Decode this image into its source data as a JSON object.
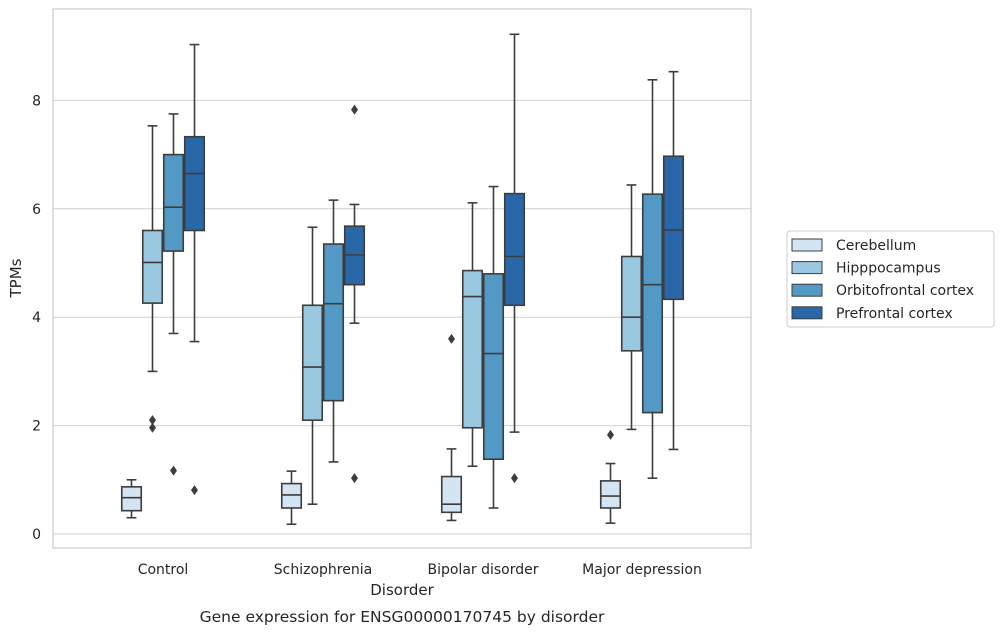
{
  "chart_data": {
    "type": "box",
    "caption": "Gene expression for ENSG00000170745 by disorder",
    "xlabel": "Disorder",
    "ylabel": "TPMs",
    "ylim": [
      -0.25,
      9.6
    ],
    "yticks": [
      0,
      2,
      4,
      6,
      8
    ],
    "grid": "horizontal",
    "legend_position": "right",
    "categories": [
      "Control",
      "Schizophrenia",
      "Bipolar disorder",
      "Major depression"
    ],
    "series": [
      {
        "name": "Cerebellum",
        "color": "#d3e4f3",
        "boxes": [
          {
            "whisker_low": 0.3,
            "q1": 0.43,
            "median": 0.67,
            "q3": 0.87,
            "whisker_high": 1.0,
            "outliers": []
          },
          {
            "whisker_low": 0.18,
            "q1": 0.48,
            "median": 0.72,
            "q3": 0.93,
            "whisker_high": 1.16,
            "outliers": []
          },
          {
            "whisker_low": 0.25,
            "q1": 0.4,
            "median": 0.55,
            "q3": 1.06,
            "whisker_high": 1.57,
            "outliers": [
              3.6
            ]
          },
          {
            "whisker_low": 0.2,
            "q1": 0.48,
            "median": 0.7,
            "q3": 0.98,
            "whisker_high": 1.3,
            "outliers": [
              1.83
            ]
          }
        ]
      },
      {
        "name": "Hipppocampus",
        "color": "#9ac8e0",
        "boxes": [
          {
            "whisker_low": 3.0,
            "q1": 4.26,
            "median": 5.01,
            "q3": 5.6,
            "whisker_high": 7.53,
            "outliers": [
              2.1,
              1.96
            ]
          },
          {
            "whisker_low": 0.55,
            "q1": 2.1,
            "median": 3.08,
            "q3": 4.22,
            "whisker_high": 5.66,
            "outliers": []
          },
          {
            "whisker_low": 1.25,
            "q1": 1.96,
            "median": 4.38,
            "q3": 4.86,
            "whisker_high": 6.11,
            "outliers": []
          },
          {
            "whisker_low": 1.93,
            "q1": 3.38,
            "median": 4.0,
            "q3": 5.12,
            "whisker_high": 6.44,
            "outliers": []
          }
        ]
      },
      {
        "name": "Orbitofrontal cortex",
        "color": "#5399c6",
        "boxes": [
          {
            "whisker_low": 3.7,
            "q1": 5.22,
            "median": 6.03,
            "q3": 7.0,
            "whisker_high": 7.75,
            "outliers": [
              1.17
            ]
          },
          {
            "whisker_low": 1.33,
            "q1": 2.46,
            "median": 4.25,
            "q3": 5.35,
            "whisker_high": 6.16,
            "outliers": []
          },
          {
            "whisker_low": 0.48,
            "q1": 1.38,
            "median": 3.33,
            "q3": 4.8,
            "whisker_high": 6.41,
            "outliers": []
          },
          {
            "whisker_low": 1.03,
            "q1": 2.24,
            "median": 4.6,
            "q3": 6.27,
            "whisker_high": 8.38,
            "outliers": []
          }
        ]
      },
      {
        "name": "Prefrontal cortex",
        "color": "#2967a8",
        "boxes": [
          {
            "whisker_low": 3.55,
            "q1": 5.6,
            "median": 6.65,
            "q3": 7.33,
            "whisker_high": 9.03,
            "outliers": [
              0.81
            ]
          },
          {
            "whisker_low": 3.89,
            "q1": 4.6,
            "median": 5.15,
            "q3": 5.68,
            "whisker_high": 6.08,
            "outliers": [
              7.83,
              1.03
            ]
          },
          {
            "whisker_low": 1.88,
            "q1": 4.22,
            "median": 5.12,
            "q3": 6.28,
            "whisker_high": 9.22,
            "outliers": [
              1.03
            ]
          },
          {
            "whisker_low": 1.56,
            "q1": 4.33,
            "median": 5.61,
            "q3": 6.97,
            "whisker_high": 8.53,
            "outliers": []
          }
        ]
      }
    ]
  }
}
